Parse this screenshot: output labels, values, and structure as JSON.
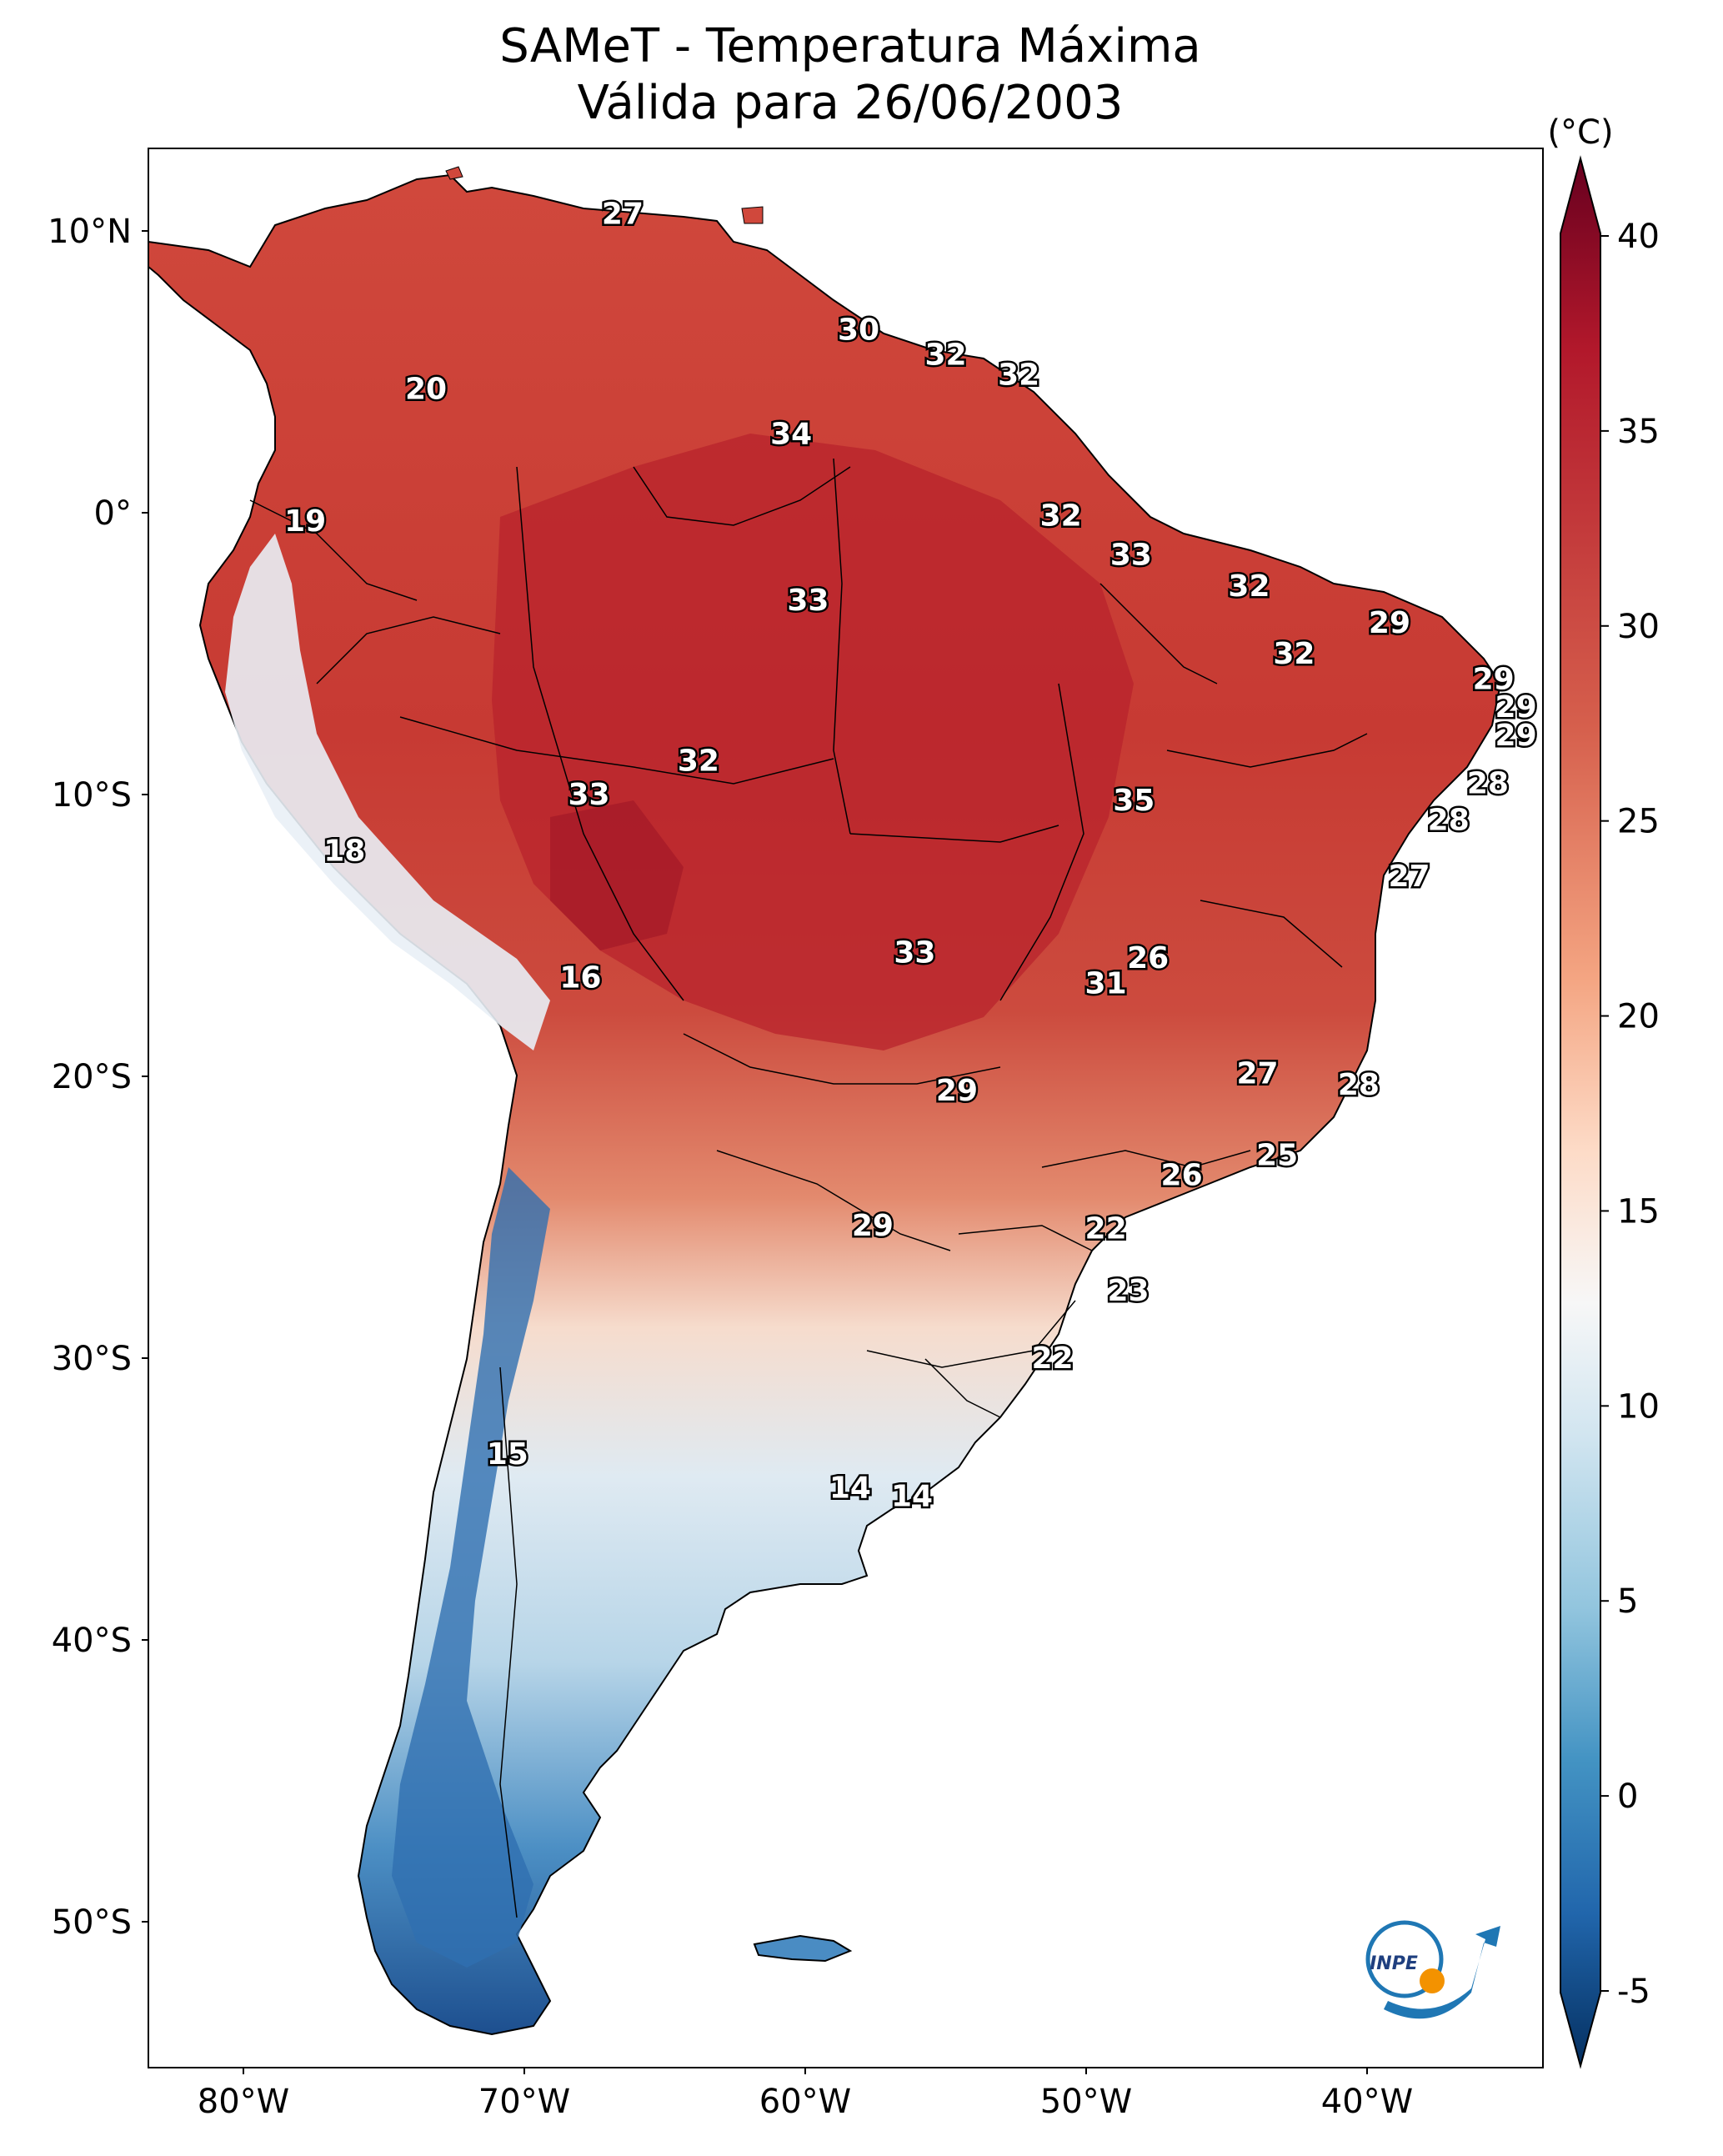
{
  "title": {
    "line1": "SAMeT - Temperatura Máxima",
    "line2": "Válida para 26/06/2003"
  },
  "axes": {
    "lat_ticks": [
      "10°N",
      "0°",
      "10°S",
      "20°S",
      "30°S",
      "40°S",
      "50°S"
    ],
    "lon_ticks": [
      "80°W",
      "70°W",
      "60°W",
      "50°W",
      "40°W"
    ]
  },
  "colorbar": {
    "unit": "(°C)",
    "ticks": [
      "40",
      "35",
      "30",
      "25",
      "20",
      "15",
      "10",
      "5",
      "0",
      "-5"
    ],
    "colors": [
      "#67001f",
      "#b2182b",
      "#d6604d",
      "#f4a582",
      "#fddbc7",
      "#f7f7f7",
      "#d1e5f0",
      "#92c5de",
      "#4393c3",
      "#2166ac",
      "#053061"
    ]
  },
  "temperature_labels": [
    {
      "value": "27",
      "lon": -66.5,
      "lat": 10.6
    },
    {
      "value": "30",
      "lon": -58.1,
      "lat": 6.5
    },
    {
      "value": "32",
      "lon": -55.0,
      "lat": 5.6
    },
    {
      "value": "32",
      "lon": -52.4,
      "lat": 4.9
    },
    {
      "value": "20",
      "lon": -73.5,
      "lat": 4.4
    },
    {
      "value": "34",
      "lon": -60.5,
      "lat": 2.8
    },
    {
      "value": "19",
      "lon": -77.8,
      "lat": -0.3
    },
    {
      "value": "32",
      "lon": -50.9,
      "lat": -0.1
    },
    {
      "value": "33",
      "lon": -48.4,
      "lat": -1.5
    },
    {
      "value": "32",
      "lon": -44.2,
      "lat": -2.6
    },
    {
      "value": "33",
      "lon": -59.9,
      "lat": -3.1
    },
    {
      "value": "29",
      "lon": -39.2,
      "lat": -3.9
    },
    {
      "value": "32",
      "lon": -42.6,
      "lat": -5.0
    },
    {
      "value": "29",
      "lon": -35.5,
      "lat": -5.9
    },
    {
      "value": "29",
      "lon": -34.7,
      "lat": -6.9
    },
    {
      "value": "29",
      "lon": -34.7,
      "lat": -7.9
    },
    {
      "value": "32",
      "lon": -63.8,
      "lat": -8.8
    },
    {
      "value": "28",
      "lon": -35.7,
      "lat": -9.6
    },
    {
      "value": "33",
      "lon": -67.7,
      "lat": -10.0
    },
    {
      "value": "35",
      "lon": -48.3,
      "lat": -10.2
    },
    {
      "value": "28",
      "lon": -37.1,
      "lat": -10.9
    },
    {
      "value": "18",
      "lon": -76.4,
      "lat": -12.0
    },
    {
      "value": "27",
      "lon": -38.5,
      "lat": -12.9
    },
    {
      "value": "26",
      "lon": -47.8,
      "lat": -15.8
    },
    {
      "value": "33",
      "lon": -56.1,
      "lat": -15.6
    },
    {
      "value": "16",
      "lon": -68.0,
      "lat": -16.5
    },
    {
      "value": "31",
      "lon": -49.3,
      "lat": -16.7
    },
    {
      "value": "27",
      "lon": -43.9,
      "lat": -19.9
    },
    {
      "value": "28",
      "lon": -40.3,
      "lat": -20.3
    },
    {
      "value": "29",
      "lon": -54.6,
      "lat": -20.5
    },
    {
      "value": "25",
      "lon": -43.2,
      "lat": -22.8
    },
    {
      "value": "26",
      "lon": -46.6,
      "lat": -23.5
    },
    {
      "value": "29",
      "lon": -57.6,
      "lat": -25.3
    },
    {
      "value": "22",
      "lon": -49.3,
      "lat": -25.4
    },
    {
      "value": "23",
      "lon": -48.5,
      "lat": -27.6
    },
    {
      "value": "22",
      "lon": -51.2,
      "lat": -30.0
    },
    {
      "value": "15",
      "lon": -70.6,
      "lat": -33.4
    },
    {
      "value": "14",
      "lon": -58.4,
      "lat": -34.6
    },
    {
      "value": "14",
      "lon": -56.2,
      "lat": -34.9
    }
  ],
  "logo": {
    "text": "INPE"
  }
}
